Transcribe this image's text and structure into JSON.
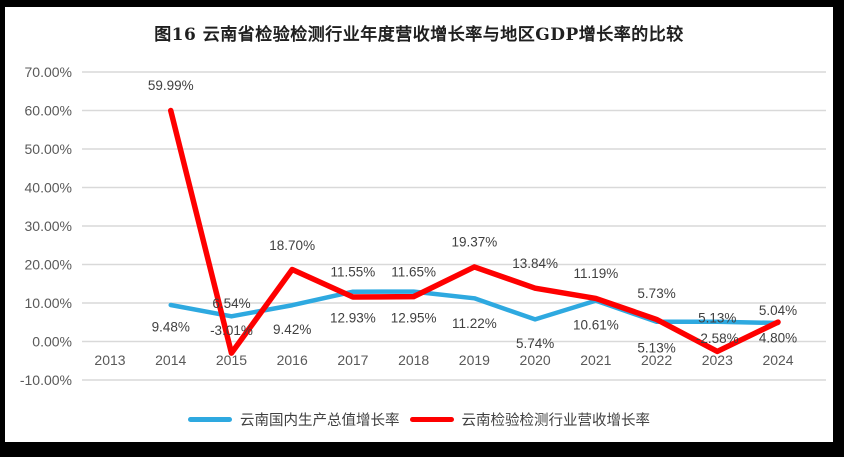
{
  "window": {
    "frame_color": "#000000",
    "canvas_color": "#ffffff"
  },
  "title": "图16  云南省检验检测行业年度营收增长率与地区GDP增长率的比较",
  "chart_data": {
    "type": "line",
    "title": "图16  云南省检验检测行业年度营收增长率与地区GDP增长率的比较",
    "categories": [
      "2013",
      "2014",
      "2015",
      "2016",
      "2017",
      "2018",
      "2019",
      "2020",
      "2021",
      "2022",
      "2023",
      "2024"
    ],
    "series": [
      {
        "name": "云南国内生产总值增长率",
        "color": "#2EA9E0",
        "values": [
          null,
          9.48,
          6.54,
          9.42,
          12.93,
          12.95,
          11.22,
          5.74,
          10.61,
          5.13,
          5.13,
          4.8
        ],
        "labels": [
          "",
          "9.48%",
          "6.54%",
          "9.42%",
          "12.93%",
          "12.95%",
          "11.22%",
          "5.74%",
          "10.61%",
          "5.13%",
          "5.13%",
          "4.80%"
        ]
      },
      {
        "name": "云南检验检测行业营收增长率",
        "color": "#FE0000",
        "values": [
          null,
          59.99,
          -3.01,
          18.7,
          11.55,
          11.65,
          19.37,
          13.84,
          11.19,
          5.73,
          -2.58,
          5.04
        ],
        "labels": [
          "",
          "59.99%",
          "-3.01%",
          "18.70%",
          "11.55%",
          "11.65%",
          "19.37%",
          "13.84%",
          "11.19%",
          "5.73%",
          "-2.58%",
          "5.04%"
        ]
      }
    ],
    "y_axis": {
      "min": -10,
      "max": 70,
      "step": 10,
      "tick_labels": [
        "70.00%",
        "60.00%",
        "50.00%",
        "40.00%",
        "30.00%",
        "20.00%",
        "10.00%",
        "0.00%",
        "-10.00%"
      ]
    },
    "x_axis": {
      "tick_labels": [
        "2013",
        "2014",
        "2015",
        "2016",
        "2017",
        "2018",
        "2019",
        "2020",
        "2021",
        "2022",
        "2023",
        "2024"
      ]
    },
    "grid": true,
    "legend_position": "bottom",
    "label_layout": {
      "series0_dy": [
        0,
        22,
        -13,
        24,
        26,
        26,
        25,
        24,
        24,
        26,
        -4,
        15
      ],
      "series1_dy": [
        0,
        -25,
        -23,
        -24,
        -25,
        -25,
        -25,
        -25,
        -25,
        -26,
        -13,
        -12
      ]
    },
    "styles": {
      "grid_color": "#D9D9D9",
      "axis_text_color": "#595959",
      "label_text_color": "#404040"
    }
  }
}
